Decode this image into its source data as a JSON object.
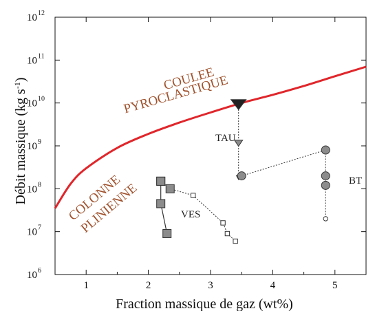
{
  "chart_data": {
    "type": "scatter",
    "xlabel": "Fraction massique de gaz (wt%)",
    "ylabel": "Débit massique",
    "ylabel_unit": "(kg s-1)",
    "xlim": [
      0.5,
      5.5
    ],
    "ylim_log10": [
      6,
      12
    ],
    "log_scale_y": true,
    "grid": false,
    "x_ticks": [
      1,
      2,
      3,
      4,
      5
    ],
    "y_ticks": [
      {
        "base": "10",
        "exp": "6"
      },
      {
        "base": "10",
        "exp": "7"
      },
      {
        "base": "10",
        "exp": "8"
      },
      {
        "base": "10",
        "exp": "9"
      },
      {
        "base": "10",
        "exp": "10"
      },
      {
        "base": "10",
        "exp": "11"
      },
      {
        "base": "10",
        "exp": "12"
      }
    ],
    "region_labels": {
      "upper": [
        "COULEE",
        "PYROCLASTIQUE"
      ],
      "lower": [
        "COLONNE",
        "PLINIENNE"
      ]
    },
    "boundary_curve": {
      "color": "#e0262b",
      "points": [
        [
          0.5,
          35000000.0
        ],
        [
          0.75,
          130000000.0
        ],
        [
          1.0,
          300000000.0
        ],
        [
          1.5,
          900000000.0
        ],
        [
          2.0,
          1900000000.0
        ],
        [
          2.5,
          3500000000.0
        ],
        [
          3.0,
          6000000000.0
        ],
        [
          3.5,
          10000000000.0
        ],
        [
          4.0,
          15500000000.0
        ],
        [
          4.5,
          25000000000.0
        ],
        [
          5.0,
          42000000000.0
        ],
        [
          5.5,
          70000000000.0
        ]
      ]
    },
    "series": [
      {
        "name": "VES",
        "connector": "solid",
        "points": [
          {
            "x": 2.2,
            "y": 150000000.0,
            "marker": "square",
            "size": "large"
          },
          {
            "x": 2.2,
            "y": 45000000.0,
            "marker": "square",
            "size": "large"
          },
          {
            "x": 2.3,
            "y": 9000000.0,
            "marker": "square",
            "size": "large"
          }
        ]
      },
      {
        "name": "",
        "connector": "dotted",
        "points": [
          {
            "x": 2.2,
            "y": 150000000.0,
            "marker": "square",
            "size": "large"
          },
          {
            "x": 2.35,
            "y": 100000000.0,
            "marker": "square",
            "size": "large"
          },
          {
            "x": 2.72,
            "y": 70000000.0,
            "marker": "square",
            "size": "small"
          },
          {
            "x": 3.2,
            "y": 16000000.0,
            "marker": "square",
            "size": "small"
          },
          {
            "x": 3.27,
            "y": 9000000.0,
            "marker": "square",
            "size": "small"
          },
          {
            "x": 3.4,
            "y": 6000000.0,
            "marker": "square",
            "size": "small"
          }
        ]
      },
      {
        "name": "TAU",
        "connector": "dotted",
        "points": [
          {
            "x": 3.45,
            "y": 9500000000.0,
            "marker": "triangle-down",
            "size": "xlarge",
            "fill": "#222222"
          },
          {
            "x": 3.45,
            "y": 1200000000.0,
            "marker": "triangle-down",
            "size": "large"
          },
          {
            "x": 3.45,
            "y": 190000000.0,
            "marker": "triangle-down",
            "size": "small"
          }
        ]
      },
      {
        "name": "BT",
        "connector": "dotted",
        "points": [
          {
            "x": 3.5,
            "y": 200000000.0,
            "marker": "circle",
            "size": "large"
          },
          {
            "x": 4.85,
            "y": 800000000.0,
            "marker": "circle",
            "size": "large"
          },
          {
            "x": 4.85,
            "y": 200000000.0,
            "marker": "circle",
            "size": "large"
          },
          {
            "x": 4.85,
            "y": 120000000.0,
            "marker": "circle",
            "size": "large"
          },
          {
            "x": 4.85,
            "y": 20000000.0,
            "marker": "circle",
            "size": "small"
          }
        ]
      }
    ],
    "colors": {
      "marker_fill": "#8c8c8c",
      "marker_stroke": "#333333",
      "small_marker_fill": "#ffffff",
      "axis": "#111111"
    }
  }
}
